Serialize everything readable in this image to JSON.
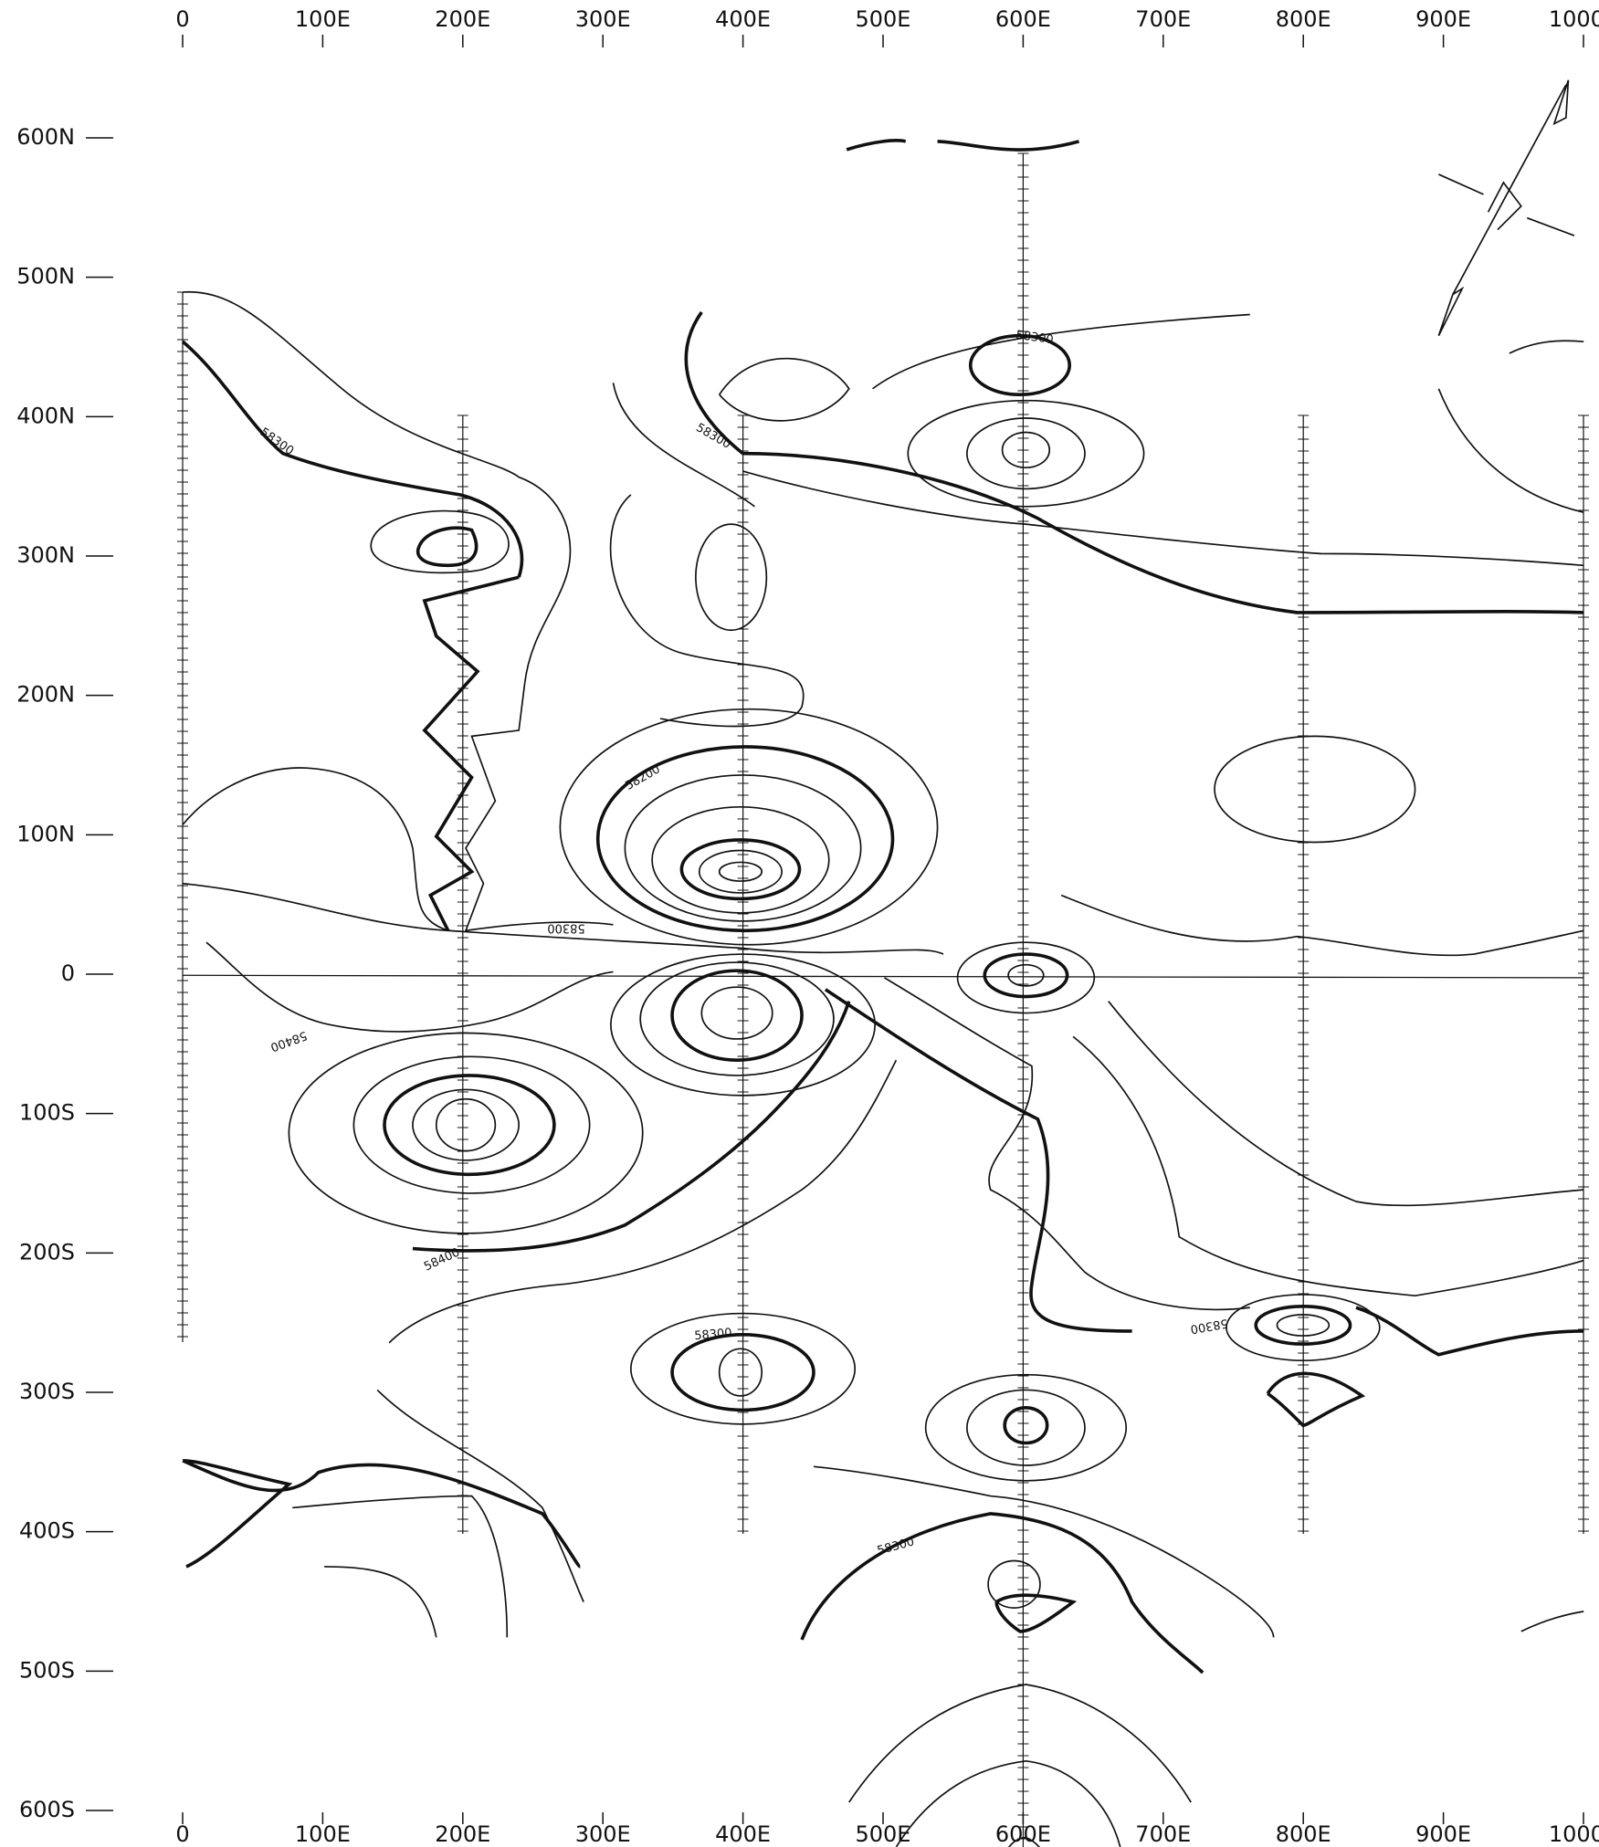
{
  "chart_data": {
    "type": "contour",
    "xlim": [
      0,
      1000
    ],
    "xticks": [
      0,
      {
        "value": 100,
        "label": "100E"
      },
      {
        "value": 200,
        "label": "200E"
      },
      {
        "value": 300,
        "label": "300E"
      },
      {
        "value": 400,
        "label": "400E"
      },
      {
        "value": 500,
        "label": "500E"
      },
      {
        "value": 600,
        "label": "600E"
      },
      {
        "value": 700,
        "label": "700E"
      },
      {
        "value": 800,
        "label": "800E"
      },
      {
        "value": 900,
        "label": "900E"
      },
      {
        "value": 1000,
        "label": "1000E"
      }
    ],
    "ylim": [
      -600,
      600
    ],
    "yticks": [
      {
        "value": 600,
        "label": "600N"
      },
      {
        "value": 500,
        "label": "500N"
      },
      {
        "value": 400,
        "label": "400N"
      },
      {
        "value": 300,
        "label": "300N"
      },
      {
        "value": 200,
        "label": "200N"
      },
      {
        "value": 100,
        "label": "100N"
      },
      0,
      {
        "value": -100,
        "label": "100S"
      },
      {
        "value": -200,
        "label": "200S"
      },
      {
        "value": -300,
        "label": "300S"
      },
      {
        "value": -400,
        "label": "400S"
      },
      {
        "value": -500,
        "label": "500S"
      },
      {
        "value": -600,
        "label": "600S"
      }
    ],
    "contour_labels": [
      "58300",
      "58300",
      "58300",
      "58200",
      "58300",
      "58400",
      "58400",
      "58300",
      "58300",
      "58300"
    ],
    "color": "#111111"
  }
}
